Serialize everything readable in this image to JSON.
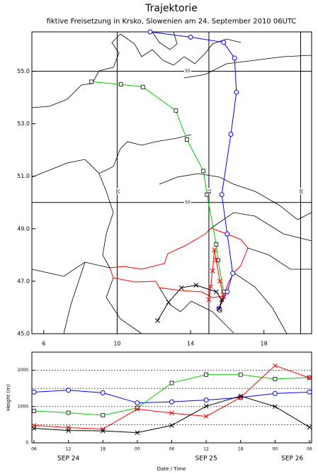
{
  "chart_data": [
    {
      "type": "trajectory-map",
      "title": "Trajektorie",
      "subtitle": "fiktive Freisetzung in Krsko, Slowenien am 24. September 2010 06UTC",
      "xlim": [
        5.35,
        20.6
      ],
      "ylim": [
        45,
        56.5
      ],
      "xticks": [
        6,
        10,
        14,
        18
      ],
      "yticks": [
        {
          "value": 45,
          "label": "45.0"
        },
        {
          "value": 47,
          "label": "47.0"
        },
        {
          "value": 49,
          "label": "49.0"
        },
        {
          "value": 51,
          "label": "51.0"
        },
        {
          "value": 53,
          "label": "53.0"
        },
        {
          "value": 55,
          "label": "55.0"
        }
      ],
      "grid_lons": [
        10,
        15,
        20
      ],
      "grid_lats": [
        50,
        55
      ],
      "series": [
        {
          "color": "#0000ff",
          "marker": "circle",
          "x": [
            15.55,
            16.0,
            16.3,
            16.0,
            15.7,
            16.2,
            16.5,
            16.4,
            15.8,
            14.0,
            11.8
          ],
          "y": [
            45.95,
            46.6,
            47.3,
            48.8,
            50.3,
            52.6,
            54.2,
            55.5,
            56.1,
            56.3,
            56.5
          ]
        },
        {
          "color": "#00cc00",
          "marker": "square",
          "x": [
            15.6,
            15.8,
            15.5,
            15.4,
            14.9,
            14.7,
            13.8,
            13.2,
            11.4,
            10.2,
            8.6
          ],
          "y": [
            45.9,
            46.6,
            47.8,
            48.4,
            50.3,
            51.2,
            52.4,
            53.5,
            54.4,
            54.5,
            54.6
          ]
        },
        {
          "color": "#ff0000",
          "marker": "cross",
          "x": [
            15.55,
            15.8,
            15.6,
            15.4,
            15.3,
            15.2,
            15.1,
            15.0
          ],
          "y": [
            45.95,
            46.4,
            47.0,
            47.8,
            48.2,
            47.4,
            46.8,
            46.3
          ]
        },
        {
          "color": "#000000",
          "marker": "cross",
          "x": [
            15.55,
            15.7,
            15.4,
            14.3,
            13.5,
            12.8,
            12.2
          ],
          "y": [
            45.95,
            46.3,
            46.6,
            46.85,
            46.75,
            46.2,
            45.5
          ]
        }
      ]
    },
    {
      "type": "line",
      "xlabel": "Date / Time",
      "ylabel": "Height (m)",
      "xlim": [
        0,
        48
      ],
      "ylim": [
        0,
        2500
      ],
      "xticks": [
        {
          "value": 0,
          "label": "06"
        },
        {
          "value": 6,
          "label": "12"
        },
        {
          "value": 12,
          "label": "18"
        },
        {
          "value": 18,
          "label": "00"
        },
        {
          "value": 24,
          "label": "06"
        },
        {
          "value": 30,
          "label": "12"
        },
        {
          "value": 36,
          "label": "18"
        },
        {
          "value": 42,
          "label": "00"
        },
        {
          "value": 48,
          "label": "06"
        }
      ],
      "date_labels": [
        {
          "value": 6,
          "label": "SEP 24"
        },
        {
          "value": 30,
          "label": "SEP 25"
        },
        {
          "value": 45,
          "label": "SEP 26"
        }
      ],
      "yticks": [
        {
          "value": 0,
          "label": "0."
        },
        {
          "value": 1000,
          "label": "1000."
        },
        {
          "value": 2000,
          "label": "2000."
        }
      ],
      "grid_y": [
        500,
        1000,
        1500,
        2000
      ],
      "x": [
        0,
        6,
        12,
        18,
        24,
        30,
        36,
        42,
        48
      ],
      "series": [
        {
          "color": "#0000ff",
          "marker": "circle",
          "values": [
            1400,
            1450,
            1380,
            1100,
            1130,
            1180,
            1250,
            1360,
            1400
          ]
        },
        {
          "color": "#00cc00",
          "marker": "square",
          "values": [
            880,
            830,
            760,
            960,
            1650,
            1880,
            1880,
            1760,
            1800
          ]
        },
        {
          "color": "#ff0000",
          "marker": "cross",
          "values": [
            480,
            420,
            380,
            930,
            820,
            730,
            1250,
            2130,
            1790
          ]
        },
        {
          "color": "#000000",
          "marker": "cross",
          "values": [
            400,
            340,
            330,
            280,
            480,
            1010,
            1290,
            1000,
            430
          ]
        }
      ]
    }
  ]
}
